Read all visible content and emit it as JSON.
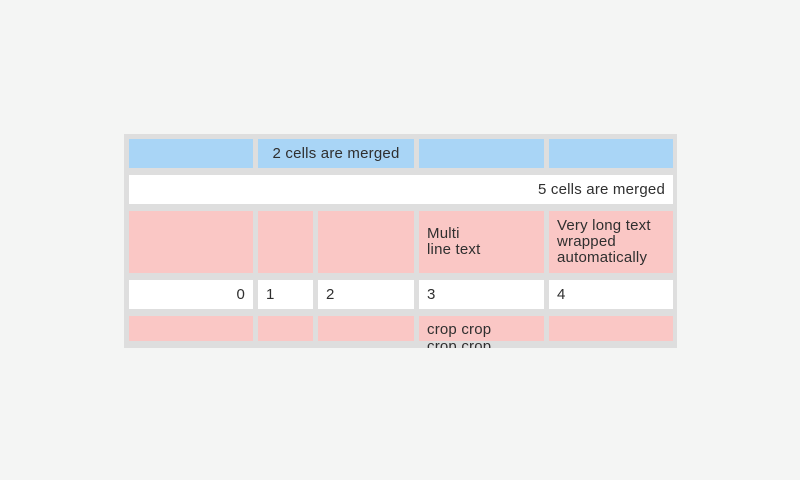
{
  "page": {
    "background": "#f4f5f4"
  },
  "table": {
    "colors": {
      "container_bg": "#dedede",
      "header_cell_bg": "#a9d5f6",
      "accent_cell_bg": "#fac7c5",
      "plain_cell_bg": "#ffffff",
      "text": "#2f2f2f"
    },
    "header_row": {
      "merged_label": "2 cells are merged"
    },
    "merged_row": {
      "label": "5 cells are merged"
    },
    "wrap_row": {
      "multiline_label": "Multi\nline text",
      "wrapped_label": "Very long text wrapped automatically"
    },
    "number_row": {
      "values": [
        "0",
        "1",
        "2",
        "3",
        "4"
      ]
    },
    "crop_row": {
      "label": "crop crop\ncrop crop"
    }
  }
}
